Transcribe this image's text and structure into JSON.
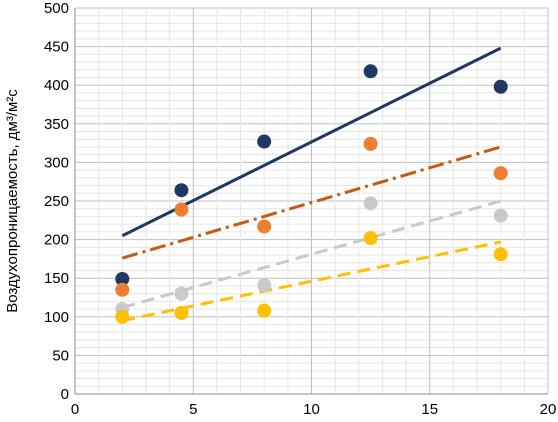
{
  "chart_data": {
    "type": "scatter",
    "title": "",
    "xlabel": "",
    "ylabel": "Воздухопроницаемость, дм³/м²с",
    "xlim": [
      0,
      20
    ],
    "ylim": [
      0,
      500
    ],
    "x_ticks": [
      "0",
      "5",
      "10",
      "15",
      "20"
    ],
    "y_ticks": [
      "0",
      "50",
      "100",
      "150",
      "200",
      "250",
      "300",
      "350",
      "400",
      "450",
      "500"
    ],
    "grid": true,
    "legend": "none",
    "x": [
      2,
      4.5,
      8,
      12.5,
      18
    ],
    "series": [
      {
        "values": [
          149,
          264,
          327,
          418,
          398
        ],
        "color": "#1f3864",
        "trend": {
          "x": [
            2,
            18
          ],
          "y": [
            205,
            448
          ],
          "style": "solid"
        }
      },
      {
        "values": [
          135,
          239,
          217,
          324,
          286
        ],
        "color": "#ed7d31",
        "trend": {
          "x": [
            2,
            18
          ],
          "y": [
            176,
            320
          ],
          "style": "dash-dot",
          "color": "#c55a11"
        }
      },
      {
        "values": [
          110,
          130,
          141,
          247,
          231
        ],
        "color": "#c9c9c9",
        "trend": {
          "x": [
            2,
            18
          ],
          "y": [
            112,
            250
          ],
          "style": "dash"
        }
      },
      {
        "values": [
          100,
          105,
          108,
          202,
          181
        ],
        "color": "#ffc000",
        "trend": {
          "x": [
            2,
            18
          ],
          "y": [
            95,
            197
          ],
          "style": "dash"
        }
      }
    ]
  }
}
